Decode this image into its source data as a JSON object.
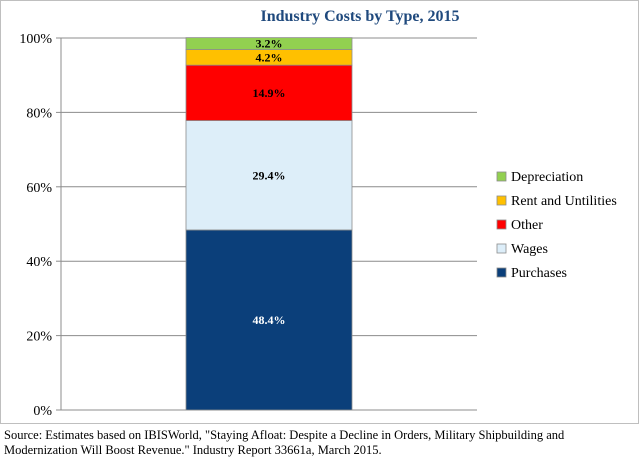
{
  "chart_data": {
    "type": "bar",
    "stacked": true,
    "title": "Industry Costs by Type, 2015",
    "categories": [
      ""
    ],
    "ylim": [
      0,
      100
    ],
    "yticks": [
      "0%",
      "20%",
      "40%",
      "60%",
      "80%",
      "100%"
    ],
    "series": [
      {
        "name": "Purchases",
        "values": [
          48.4
        ],
        "label": "48.4%",
        "color": "#0b3f7a",
        "label_color": "#ffffff"
      },
      {
        "name": "Wages",
        "values": [
          29.4
        ],
        "label": "29.4%",
        "color": "#ddeef9",
        "label_color": "#000000"
      },
      {
        "name": "Other",
        "values": [
          14.9
        ],
        "label": "14.9%",
        "color": "#ff0000",
        "label_color": "#000000"
      },
      {
        "name": "Rent and Untilities",
        "values": [
          4.2
        ],
        "label": "4.2%",
        "color": "#ffc000",
        "label_color": "#000000"
      },
      {
        "name": "Depreciation",
        "values": [
          3.2
        ],
        "label": "3.2%",
        "color": "#92d050",
        "label_color": "#000000"
      }
    ],
    "legend": {
      "position": "right",
      "order": [
        "Depreciation",
        "Rent and Untilities",
        "Other",
        "Wages",
        "Purchases"
      ]
    },
    "grid": "horizontal"
  },
  "source_note": "Source:  Estimates based on IBISWorld, \"Staying Afloat: Despite a Decline in Orders, Military Shipbuilding and Modernization Will Boost Revenue.\" Industry Report 33661a, March 2015."
}
